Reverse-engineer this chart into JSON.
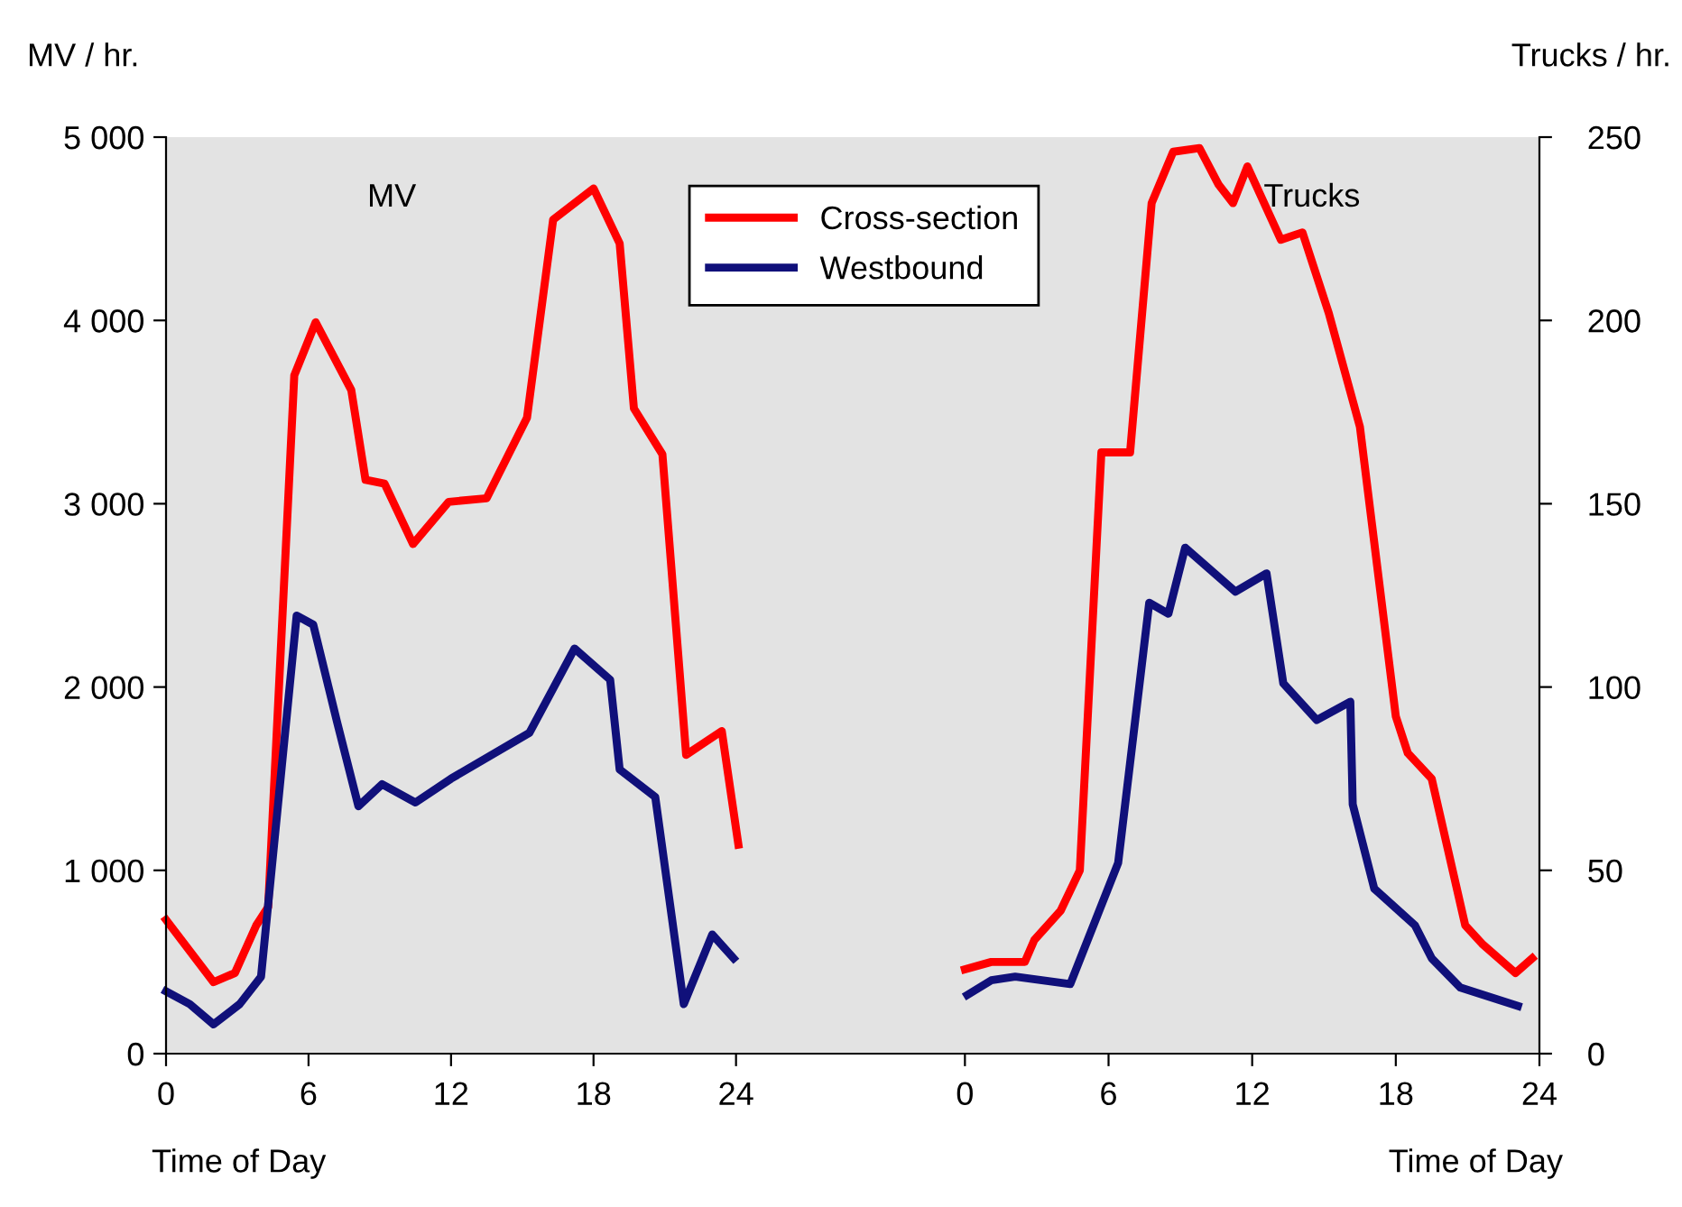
{
  "chart_data": [
    {
      "type": "line",
      "ylabel": "MV / hr.",
      "xlabel": "Time of Day",
      "annotations": [
        "MV"
      ],
      "xlim": [
        0,
        28.8
      ],
      "xticks": [
        0,
        6,
        12,
        18,
        24
      ],
      "ylim": [
        0,
        5000
      ],
      "yticks": [
        0,
        {
          "value": 1000,
          "label": "1 000"
        },
        {
          "value": 2000,
          "label": "2 000"
        },
        {
          "value": 3000,
          "label": "3 000"
        },
        {
          "value": 4000,
          "label": "4 000"
        },
        {
          "value": 5000,
          "label": "5 000"
        }
      ],
      "grid": false,
      "legend": "top right",
      "marker": "none",
      "line_style": "solid",
      "series": [
        {
          "name": "Cross-section",
          "color": "#ff0000",
          "x": [
            0,
            2.0,
            2.9,
            3.8,
            4.3,
            5.4,
            6.3,
            7.8,
            8.4,
            9.2,
            10.4,
            11.9,
            13.5,
            15.2,
            16.3,
            18.0,
            19.1,
            19.7,
            20.9,
            21.9,
            23.4,
            24.1
          ],
          "values": [
            730,
            390,
            440,
            700,
            800,
            3700,
            3990,
            3620,
            3130,
            3110,
            2780,
            3010,
            3030,
            3470,
            4550,
            4720,
            4420,
            3520,
            3270,
            1630,
            1760,
            1140
          ]
        },
        {
          "name": "Westbound",
          "color": "#10107a",
          "x": [
            0,
            1.0,
            2.0,
            3.1,
            4.0,
            5.5,
            6.2,
            7.2,
            8.1,
            9.1,
            10.5,
            12.0,
            15.3,
            17.2,
            18.7,
            19.1,
            20.6,
            21.8,
            23.0,
            23.9
          ],
          "values": [
            340,
            270,
            160,
            270,
            420,
            2390,
            2340,
            1810,
            1350,
            1470,
            1370,
            1500,
            1750,
            2210,
            2040,
            1550,
            1400,
            270,
            650,
            520
          ]
        }
      ]
    },
    {
      "type": "line",
      "y2label": "Trucks / hr.",
      "xlabel": "Time of Day",
      "annotations": [
        "Trucks"
      ],
      "xlim": [
        -4.8,
        24
      ],
      "xticks": [
        0,
        6,
        12,
        18,
        24
      ],
      "y2lim": [
        0,
        250
      ],
      "y2ticks": [
        0,
        50,
        100,
        150,
        200,
        250
      ],
      "grid": false,
      "legend": false,
      "marker": "none",
      "line_style": "solid",
      "series": [
        {
          "color": "#ff0000",
          "axis": "y2",
          "x": [
            0,
            1.1,
            2.5,
            2.9,
            4.0,
            4.8,
            5.7,
            6.9,
            7.8,
            8.7,
            9.8,
            10.6,
            11.2,
            11.8,
            13.2,
            14.1,
            15.2,
            16.5,
            18.0,
            18.5,
            19.5,
            20.9,
            21.6,
            23.0,
            23.7
          ],
          "values": [
            23,
            25,
            25,
            31,
            39,
            50,
            164,
            164,
            232,
            246,
            247,
            237,
            232,
            242,
            222,
            224,
            202,
            171,
            92,
            82,
            75,
            35,
            30,
            22,
            26
          ]
        },
        {
          "color": "#10107a",
          "axis": "y2",
          "x": [
            0.1,
            1.1,
            2.1,
            4.4,
            6.4,
            7.7,
            8.5,
            9.2,
            11.3,
            12.6,
            13.3,
            14.7,
            16.1,
            16.2,
            17.1,
            18.8,
            19.5,
            20.7,
            23.1
          ],
          "values": [
            16,
            20,
            21,
            19,
            52,
            123,
            120,
            138,
            126,
            131,
            101,
            91,
            96,
            68,
            45,
            35,
            26,
            18,
            13
          ]
        }
      ]
    }
  ]
}
